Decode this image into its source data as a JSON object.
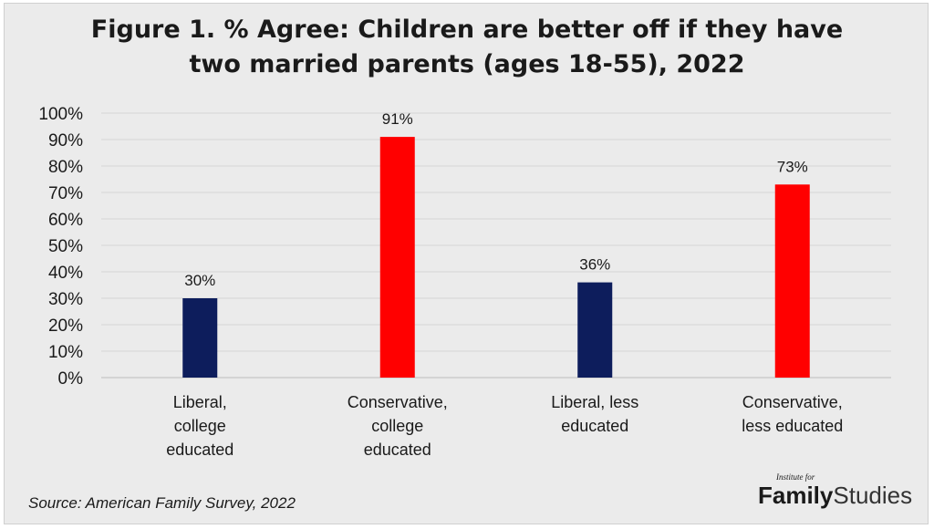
{
  "chart_data": {
    "type": "bar",
    "title": "Figure 1. % Agree: Children are better off if they have two married parents (ages 18-55), 2022",
    "title_lines": [
      "Figure 1. % Agree: Children are better off if they have",
      "two married parents (ages 18-55), 2022"
    ],
    "categories": [
      [
        "Liberal,",
        "college",
        "educated"
      ],
      [
        "Conservative,",
        "college",
        "educated"
      ],
      [
        "Liberal, less",
        "educated"
      ],
      [
        "Conservative,",
        "less educated"
      ]
    ],
    "values": [
      30,
      91,
      36,
      73
    ],
    "data_labels": [
      "30%",
      "91%",
      "36%",
      "73%"
    ],
    "bar_colors": [
      "#0d1d5c",
      "#ff0000",
      "#0d1d5c",
      "#ff0000"
    ],
    "ylim": [
      0,
      100
    ],
    "yticks": [
      0,
      10,
      20,
      30,
      40,
      50,
      60,
      70,
      80,
      90,
      100
    ],
    "ytick_labels": [
      "0%",
      "10%",
      "20%",
      "30%",
      "40%",
      "50%",
      "60%",
      "70%",
      "80%",
      "90%",
      "100%"
    ],
    "grid": true,
    "xlabel": "",
    "ylabel": ""
  },
  "source": "Source: American Family Survey, 2022",
  "logo": {
    "small": "Institute for",
    "bold": "Family",
    "light": "Studies"
  }
}
